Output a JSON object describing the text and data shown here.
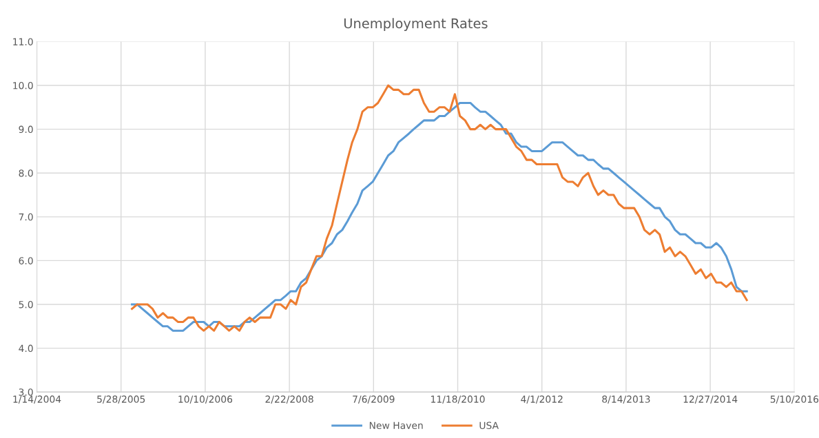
{
  "chart_data": {
    "type": "line",
    "title": "Unemployment Rates",
    "x": [
      "2005-08",
      "2005-09",
      "2005-10",
      "2005-11",
      "2005-12",
      "2006-01",
      "2006-02",
      "2006-03",
      "2006-04",
      "2006-05",
      "2006-06",
      "2006-07",
      "2006-08",
      "2006-09",
      "2006-10",
      "2006-11",
      "2006-12",
      "2007-01",
      "2007-02",
      "2007-03",
      "2007-04",
      "2007-05",
      "2007-06",
      "2007-07",
      "2007-08",
      "2007-09",
      "2007-10",
      "2007-11",
      "2007-12",
      "2008-01",
      "2008-02",
      "2008-03",
      "2008-04",
      "2008-05",
      "2008-06",
      "2008-07",
      "2008-08",
      "2008-09",
      "2008-10",
      "2008-11",
      "2008-12",
      "2009-01",
      "2009-02",
      "2009-03",
      "2009-04",
      "2009-05",
      "2009-06",
      "2009-07",
      "2009-08",
      "2009-09",
      "2009-10",
      "2009-11",
      "2009-12",
      "2010-01",
      "2010-02",
      "2010-03",
      "2010-04",
      "2010-05",
      "2010-06",
      "2010-07",
      "2010-08",
      "2010-09",
      "2010-10",
      "2010-11",
      "2010-12",
      "2011-01",
      "2011-02",
      "2011-03",
      "2011-04",
      "2011-05",
      "2011-06",
      "2011-07",
      "2011-08",
      "2011-09",
      "2011-10",
      "2011-11",
      "2011-12",
      "2012-01",
      "2012-02",
      "2012-03",
      "2012-04",
      "2012-05",
      "2012-06",
      "2012-07",
      "2012-08",
      "2012-09",
      "2012-10",
      "2012-11",
      "2012-12",
      "2013-01",
      "2013-02",
      "2013-03",
      "2013-04",
      "2013-05",
      "2013-06",
      "2013-07",
      "2013-08",
      "2013-09",
      "2013-10",
      "2013-11",
      "2013-12",
      "2014-01",
      "2014-02",
      "2014-03",
      "2014-04",
      "2014-05",
      "2014-06",
      "2014-07",
      "2014-08",
      "2014-09",
      "2014-10",
      "2014-11",
      "2014-12",
      "2015-01",
      "2015-02",
      "2015-03",
      "2015-04",
      "2015-05",
      "2015-06",
      "2015-07",
      "2015-08"
    ],
    "series": [
      {
        "name": "New Haven",
        "color": "#5b9bd5",
        "values": [
          5.0,
          5.0,
          4.9,
          4.8,
          4.7,
          4.6,
          4.5,
          4.5,
          4.4,
          4.4,
          4.4,
          4.5,
          4.6,
          4.6,
          4.6,
          4.5,
          4.6,
          4.6,
          4.5,
          4.5,
          4.5,
          4.5,
          4.6,
          4.6,
          4.7,
          4.8,
          4.9,
          5.0,
          5.1,
          5.1,
          5.2,
          5.3,
          5.3,
          5.5,
          5.6,
          5.8,
          6.0,
          6.1,
          6.3,
          6.4,
          6.6,
          6.7,
          6.9,
          7.1,
          7.3,
          7.6,
          7.7,
          7.8,
          8.0,
          8.2,
          8.4,
          8.5,
          8.7,
          8.8,
          8.9,
          9.0,
          9.1,
          9.2,
          9.2,
          9.2,
          9.3,
          9.3,
          9.4,
          9.5,
          9.6,
          9.6,
          9.6,
          9.5,
          9.4,
          9.4,
          9.3,
          9.2,
          9.1,
          8.9,
          8.9,
          8.7,
          8.6,
          8.6,
          8.5,
          8.5,
          8.5,
          8.6,
          8.7,
          8.7,
          8.7,
          8.6,
          8.5,
          8.4,
          8.4,
          8.3,
          8.3,
          8.2,
          8.1,
          8.1,
          8.0,
          7.9,
          7.8,
          7.7,
          7.6,
          7.5,
          7.4,
          7.3,
          7.2,
          7.2,
          7.0,
          6.9,
          6.7,
          6.6,
          6.6,
          6.5,
          6.4,
          6.4,
          6.3,
          6.3,
          6.4,
          6.3,
          6.1,
          5.8,
          5.4,
          5.3,
          5.3
        ]
      },
      {
        "name": "USA",
        "color": "#ed7d31",
        "values": [
          4.9,
          5.0,
          5.0,
          5.0,
          4.9,
          4.7,
          4.8,
          4.7,
          4.7,
          4.6,
          4.6,
          4.7,
          4.7,
          4.5,
          4.4,
          4.5,
          4.4,
          4.6,
          4.5,
          4.4,
          4.5,
          4.4,
          4.6,
          4.7,
          4.6,
          4.7,
          4.7,
          4.7,
          5.0,
          5.0,
          4.9,
          5.1,
          5.0,
          5.4,
          5.5,
          5.8,
          6.1,
          6.1,
          6.5,
          6.8,
          7.3,
          7.8,
          8.3,
          8.7,
          9.0,
          9.4,
          9.5,
          9.5,
          9.6,
          9.8,
          10.0,
          9.9,
          9.9,
          9.8,
          9.8,
          9.9,
          9.9,
          9.6,
          9.4,
          9.4,
          9.5,
          9.5,
          9.4,
          9.8,
          9.3,
          9.2,
          9.0,
          9.0,
          9.1,
          9.0,
          9.1,
          9.0,
          9.0,
          9.0,
          8.8,
          8.6,
          8.5,
          8.3,
          8.3,
          8.2,
          8.2,
          8.2,
          8.2,
          8.2,
          7.9,
          7.8,
          7.8,
          7.7,
          7.9,
          8.0,
          7.7,
          7.5,
          7.6,
          7.5,
          7.5,
          7.3,
          7.2,
          7.2,
          7.2,
          7.0,
          6.7,
          6.6,
          6.7,
          6.6,
          6.2,
          6.3,
          6.1,
          6.2,
          6.1,
          5.9,
          5.7,
          5.8,
          5.6,
          5.7,
          5.5,
          5.5,
          5.4,
          5.5,
          5.3,
          5.3,
          5.1
        ]
      }
    ],
    "xlim": [
      "2004-01-14",
      "2016-05-10"
    ],
    "xticks": [
      {
        "value": "2004-01-14",
        "label": "1/14/2004"
      },
      {
        "value": "2005-05-28",
        "label": "5/28/2005"
      },
      {
        "value": "2006-10-10",
        "label": "10/10/2006"
      },
      {
        "value": "2008-02-22",
        "label": "2/22/2008"
      },
      {
        "value": "2009-07-06",
        "label": "7/6/2009"
      },
      {
        "value": "2010-11-18",
        "label": "11/18/2010"
      },
      {
        "value": "2012-04-01",
        "label": "4/1/2012"
      },
      {
        "value": "2013-08-14",
        "label": "8/14/2013"
      },
      {
        "value": "2014-12-27",
        "label": "12/27/2014"
      },
      {
        "value": "2016-05-10",
        "label": "5/10/2016"
      }
    ],
    "ylim": [
      3,
      11
    ],
    "yticks": [
      {
        "value": 3,
        "label": "3.0"
      },
      {
        "value": 4,
        "label": "4.0"
      },
      {
        "value": 5,
        "label": "5.0"
      },
      {
        "value": 6,
        "label": "6.0"
      },
      {
        "value": 7,
        "label": "7.0"
      },
      {
        "value": 8,
        "label": "8.0"
      },
      {
        "value": 9,
        "label": "9.0"
      },
      {
        "value": 10,
        "label": "10.0"
      },
      {
        "value": 11,
        "label": "11.0"
      }
    ],
    "grid": true,
    "legend": "bottom",
    "marker": "none",
    "line_style": "solid"
  }
}
